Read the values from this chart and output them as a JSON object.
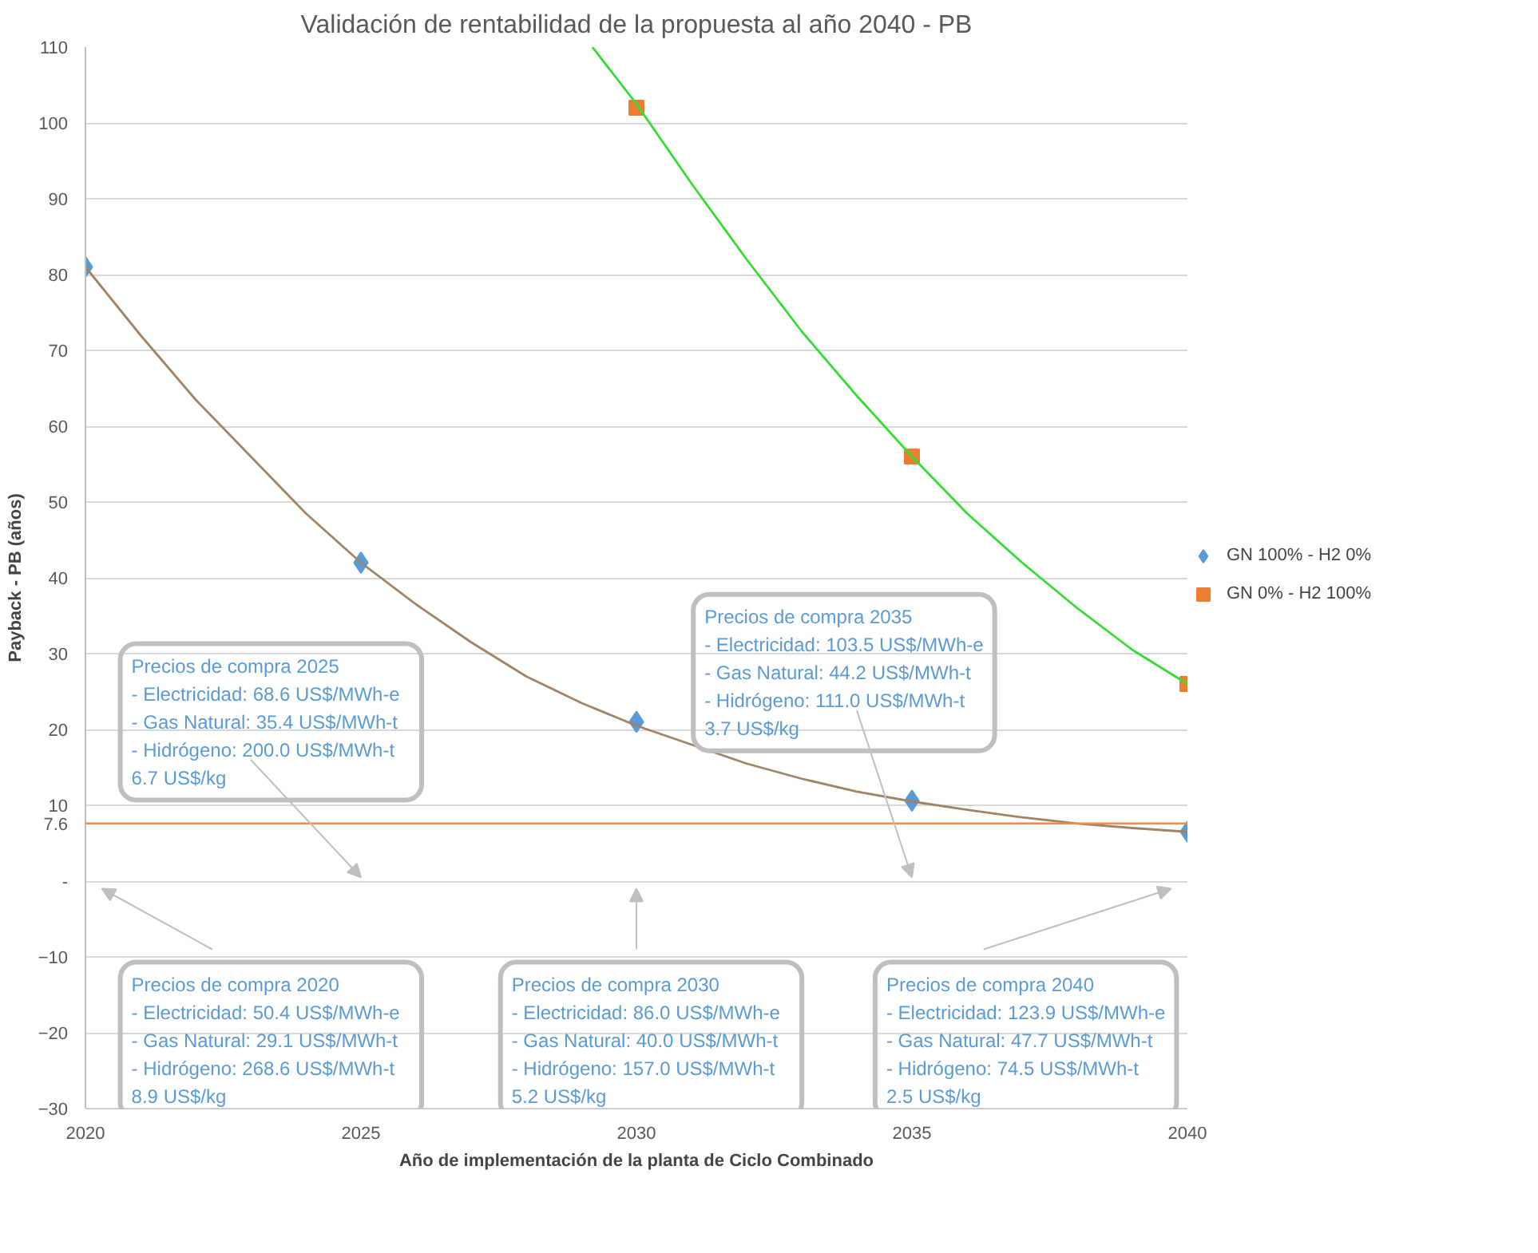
{
  "chart_data": {
    "type": "scatter",
    "title": "Validación de rentabilidad de la propuesta al año 2040 - PB",
    "xlabel": "Año de implementación de la planta de Ciclo Combinado",
    "ylabel": "Payback - PB (años)",
    "x": [
      2020,
      2025,
      2030,
      2035,
      2040
    ],
    "series": [
      {
        "name": "GN 100% - H2 0%",
        "color": "#5b9bd5",
        "marker": "diamond",
        "values": [
          81,
          42,
          21,
          10.6,
          6.5
        ]
      },
      {
        "name": "GN 0% - H2 100%",
        "color": "#ed7d31",
        "marker": "square",
        "values": [
          null,
          null,
          102,
          56,
          26
        ]
      },
      {
        "type": "line",
        "color": "#a08468",
        "marker": "none",
        "x": [
          2020,
          2021,
          2022,
          2023,
          2024,
          2025,
          2026,
          2027,
          2028,
          2029,
          2030,
          2031,
          2032,
          2033,
          2034,
          2035,
          2036,
          2037,
          2038,
          2039,
          2040
        ],
        "values": [
          81,
          72,
          63.5,
          56,
          48.5,
          42,
          36.5,
          31.5,
          27,
          23.5,
          20.5,
          18,
          15.5,
          13.5,
          11.8,
          10.5,
          9.4,
          8.4,
          7.6,
          7,
          6.5
        ]
      },
      {
        "type": "line",
        "color": "#33dd33",
        "marker": "none",
        "x": [
          2029.2,
          2030,
          2031,
          2032,
          2033,
          2034,
          2035,
          2036,
          2037,
          2038,
          2039,
          2040
        ],
        "values": [
          110,
          102.5,
          92,
          82,
          72.5,
          64,
          56,
          48.5,
          42,
          36,
          30.5,
          26
        ]
      }
    ],
    "ref_lines": [
      {
        "axis": "y",
        "value": 7.6,
        "label": "7.6",
        "color": "#f08a4b"
      }
    ],
    "xlim": [
      2020,
      2040
    ],
    "xticks": [
      2020,
      2025,
      2030,
      2035,
      2040
    ],
    "ylim": [
      -30,
      110
    ],
    "yticks": [
      -30,
      -20,
      -10,
      {
        "value": 0,
        "label": "-"
      },
      10,
      20,
      30,
      40,
      50,
      60,
      70,
      80,
      90,
      100,
      110
    ],
    "grid": "y",
    "legend": "right",
    "annotations": [
      "Precios de compra 2025\n- Electricidad: 68.6   US$/MWh-e\n- Gas Natural: 35.4   US$/MWh-t\n- Hidrógeno: 200.0   US$/MWh-t\n                   6.7       US$/kg",
      "Precios de compra 2035\n- Electricidad: 103.5 US$/MWh-e\n- Gas Natural: 44.2   US$/MWh-t\n- Hidrógeno: 111.0   US$/MWh-t\n                   3.7       US$/kg",
      "Precios de compra 2020\n- Electricidad: 50.4   US$/MWh-e\n- Gas Natural: 29.1   US$/MWh-t\n- Hidrógeno: 268.6   US$/MWh-t\n                   8.9       US$/kg",
      "Precios de compra 2030\n- Electricidad: 86.0   US$/MWh-e\n- Gas Natural: 40.0   US$/MWh-t\n- Hidrógeno: 157.0   US$/MWh-t\n                   5.2       US$/kg",
      "Precios de compra 2040\n- Electricidad: 123.9 US$/MWh-e\n- Gas Natural: 47.7   US$/MWh-t\n- Hidrógeno: 74.5     US$/MWh-t\n                   2.5       US$/kg"
    ]
  }
}
